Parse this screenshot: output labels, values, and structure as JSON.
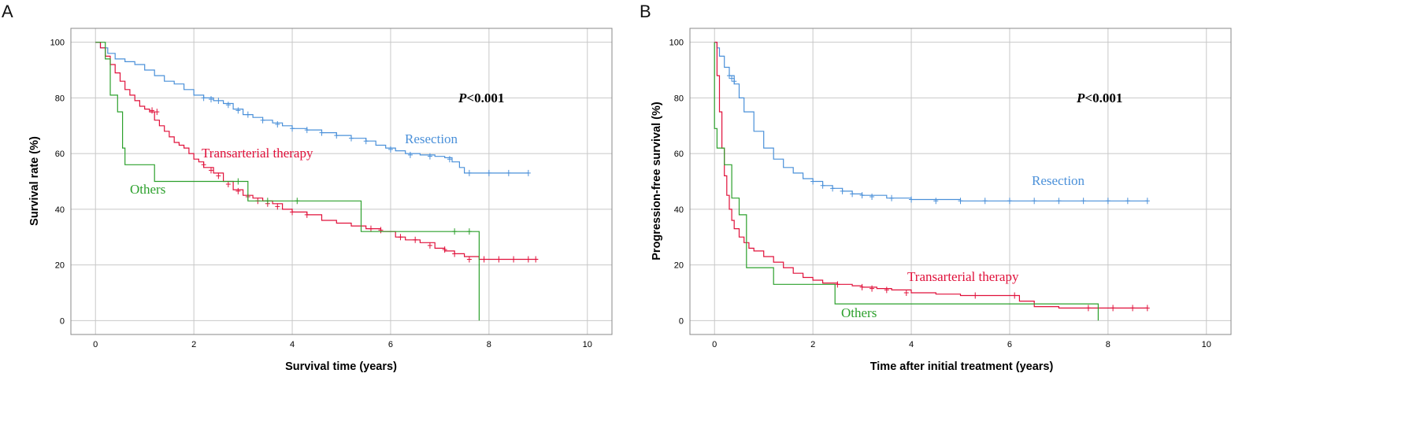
{
  "chart_data": [
    {
      "panel": "A",
      "type": "line",
      "xlabel": "Survival time (years)",
      "ylabel": "Survival rate (%)",
      "xlim": [
        -0.5,
        10.5
      ],
      "ylim": [
        -5,
        105
      ],
      "xticks": [
        0,
        2,
        4,
        6,
        8,
        10
      ],
      "yticks": [
        0,
        20,
        40,
        60,
        80,
        100
      ],
      "grid": true,
      "p_value": {
        "prefix": "P",
        "rest": "<0.001"
      },
      "series": [
        {
          "name": "Resection",
          "color": "#4a90d9",
          "x": [
            0,
            0.1,
            0.25,
            0.4,
            0.6,
            0.8,
            1.0,
            1.2,
            1.4,
            1.6,
            1.8,
            2.0,
            2.2,
            2.4,
            2.6,
            2.8,
            3.0,
            3.2,
            3.4,
            3.6,
            3.8,
            4.0,
            4.3,
            4.6,
            4.9,
            5.2,
            5.5,
            5.7,
            5.9,
            6.1,
            6.3,
            6.6,
            6.9,
            7.1,
            7.25,
            7.4,
            7.5,
            7.7,
            8.0,
            8.4,
            8.8
          ],
          "y": [
            100,
            98,
            96,
            94,
            93,
            92,
            90,
            88,
            86,
            85,
            83,
            81,
            80,
            79,
            78,
            76,
            74,
            73,
            72,
            71,
            70,
            69,
            68.5,
            67.5,
            66.5,
            65.5,
            64.5,
            63,
            62,
            61,
            60,
            59.5,
            59,
            58.5,
            57,
            55,
            53,
            53,
            53,
            53,
            53
          ],
          "censor_x": [
            2.2,
            2.35,
            2.5,
            2.7,
            2.9,
            3.1,
            3.4,
            3.7,
            4.0,
            4.3,
            4.6,
            4.9,
            5.2,
            5.5,
            6.0,
            6.4,
            6.8,
            7.2,
            7.6,
            8.0,
            8.4,
            8.8
          ],
          "censor_y": [
            80,
            79.5,
            79,
            77.5,
            75.5,
            74,
            72,
            70.5,
            69,
            68.5,
            67.5,
            66.5,
            65.5,
            64.5,
            61.5,
            59.5,
            59,
            58,
            53,
            53,
            53,
            53
          ]
        },
        {
          "name": "Transarterial therapy",
          "color": "#e0103a",
          "x": [
            0,
            0.1,
            0.2,
            0.3,
            0.4,
            0.5,
            0.6,
            0.7,
            0.8,
            0.9,
            1.0,
            1.1,
            1.2,
            1.3,
            1.4,
            1.5,
            1.6,
            1.7,
            1.8,
            1.9,
            2.0,
            2.1,
            2.2,
            2.4,
            2.6,
            2.8,
            3.0,
            3.2,
            3.4,
            3.6,
            3.8,
            4.0,
            4.3,
            4.6,
            4.9,
            5.2,
            5.5,
            5.8,
            6.1,
            6.3,
            6.6,
            6.9,
            7.1,
            7.3,
            7.5,
            7.8,
            8.2,
            8.6,
            9.0
          ],
          "y": [
            100,
            98,
            95,
            92,
            89,
            86,
            83,
            81,
            79,
            77,
            76,
            75,
            72,
            70,
            68,
            66,
            64,
            63,
            62,
            60,
            58,
            57,
            55,
            53,
            50,
            47,
            45,
            44,
            43,
            42,
            40,
            39,
            38,
            36,
            35,
            34,
            33,
            32,
            30,
            29,
            28,
            26,
            25,
            24,
            23,
            22,
            22,
            22,
            22
          ],
          "censor_x": [
            1.15,
            1.25,
            2.2,
            2.35,
            2.5,
            2.7,
            2.9,
            3.1,
            3.3,
            3.5,
            3.7,
            4.0,
            4.3,
            5.6,
            5.8,
            6.2,
            6.5,
            6.8,
            7.1,
            7.3,
            7.6,
            7.9,
            8.2,
            8.5,
            8.8,
            8.95
          ],
          "censor_y": [
            75.5,
            75,
            56,
            54,
            52,
            49,
            46.5,
            44.5,
            43,
            42,
            41,
            39,
            38,
            33,
            32.5,
            30,
            29,
            27,
            25.5,
            24,
            22,
            22,
            22,
            22,
            22,
            22
          ]
        },
        {
          "name": "Others",
          "color": "#2ca02c",
          "x": [
            0,
            0.2,
            0.3,
            0.45,
            0.55,
            0.6,
            1.2,
            2.5,
            3.1,
            5.4,
            6.6,
            7.8,
            7.8
          ],
          "y": [
            100,
            94,
            81,
            75,
            62,
            56,
            50,
            50,
            43,
            32,
            32,
            32,
            0
          ],
          "censor_x": [
            2.9,
            3.5,
            4.1,
            7.3,
            7.6
          ],
          "censor_y": [
            50,
            43,
            43,
            32,
            32
          ]
        }
      ]
    },
    {
      "panel": "B",
      "type": "line",
      "xlabel": "Time after initial treatment (years)",
      "ylabel": "Progression-free survival (%)",
      "xlim": [
        -0.5,
        10.5
      ],
      "ylim": [
        -5,
        105
      ],
      "xticks": [
        0,
        2,
        4,
        6,
        8,
        10
      ],
      "yticks": [
        0,
        20,
        40,
        60,
        80,
        100
      ],
      "grid": true,
      "p_value": {
        "prefix": "P",
        "rest": "<0.001"
      },
      "series": [
        {
          "name": "Resection",
          "color": "#4a90d9",
          "x": [
            0,
            0.05,
            0.1,
            0.2,
            0.3,
            0.4,
            0.5,
            0.6,
            0.8,
            1.0,
            1.2,
            1.4,
            1.6,
            1.8,
            2.0,
            2.2,
            2.4,
            2.6,
            2.8,
            3.0,
            3.5,
            4.0,
            5.0,
            6.0,
            7.0,
            8.0,
            8.8
          ],
          "y": [
            100,
            98,
            95,
            91,
            88,
            85,
            80,
            75,
            68,
            62,
            58,
            55,
            53,
            51,
            50,
            48.5,
            47.5,
            46.5,
            45.5,
            45,
            44,
            43.5,
            43,
            43,
            43,
            43,
            43
          ],
          "censor_x": [
            0.3,
            0.35,
            0.4,
            2.0,
            2.2,
            2.4,
            2.6,
            2.8,
            3.0,
            3.2,
            3.6,
            4.0,
            4.5,
            5.0,
            5.5,
            6.0,
            6.5,
            7.0,
            7.5,
            8.0,
            8.4,
            8.8
          ],
          "censor_y": [
            88,
            87,
            86,
            50,
            48.5,
            47.5,
            46.5,
            45.5,
            45,
            44.5,
            44,
            43.5,
            43,
            43,
            43,
            43,
            43,
            43,
            43,
            43,
            43,
            43
          ]
        },
        {
          "name": "Transarterial therapy",
          "color": "#e0103a",
          "x": [
            0,
            0.05,
            0.1,
            0.15,
            0.2,
            0.25,
            0.3,
            0.35,
            0.4,
            0.5,
            0.6,
            0.7,
            0.8,
            1.0,
            1.2,
            1.4,
            1.6,
            1.8,
            2.0,
            2.2,
            2.5,
            2.8,
            3.0,
            3.3,
            3.6,
            4.0,
            4.5,
            5.0,
            5.5,
            6.0,
            6.2,
            6.5,
            7.0,
            7.5,
            8.0,
            8.5,
            8.8
          ],
          "y": [
            100,
            88,
            75,
            62,
            52,
            45,
            40,
            36,
            33,
            30,
            28,
            26,
            25,
            23,
            21,
            19,
            17,
            15.5,
            14.5,
            13.5,
            13,
            12.5,
            12,
            11.5,
            11,
            10,
            9.5,
            9,
            9,
            9,
            7,
            5,
            4.5,
            4.5,
            4.5,
            4.5,
            4.5
          ],
          "censor_x": [
            2.5,
            3.0,
            3.2,
            3.5,
            3.9,
            5.3,
            6.1,
            7.6,
            8.1,
            8.5,
            8.8
          ],
          "censor_y": [
            13,
            12,
            11.5,
            11,
            10,
            9,
            9,
            4.5,
            4.5,
            4.5,
            4.5
          ]
        },
        {
          "name": "Others",
          "color": "#2ca02c",
          "x": [
            0,
            0,
            0.05,
            0.05,
            0.2,
            0.2,
            0.35,
            0.35,
            0.5,
            0.5,
            0.65,
            0.65,
            1.2,
            1.2,
            2.45,
            2.45,
            7.8,
            7.8
          ],
          "y": [
            100,
            69,
            69,
            62,
            62,
            56,
            56,
            44,
            44,
            38,
            38,
            19,
            19,
            13,
            13,
            6,
            6,
            0
          ],
          "censor_x": [],
          "censor_y": []
        }
      ]
    }
  ]
}
